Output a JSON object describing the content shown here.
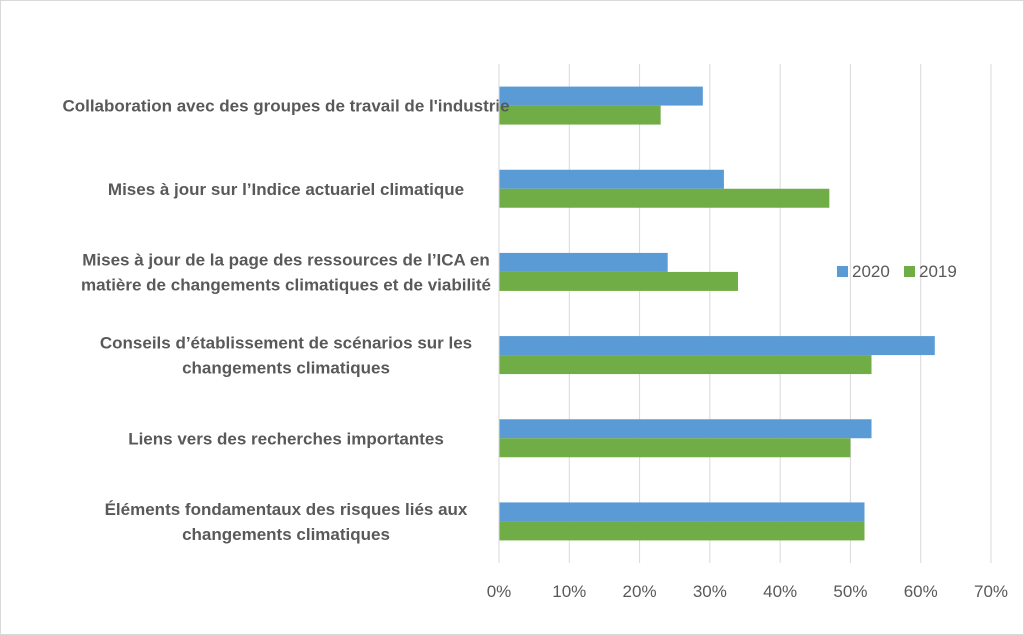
{
  "chart_data": {
    "type": "bar",
    "orientation": "horizontal",
    "categories": [
      [
        "Collaboration avec des groupes de travail de l'industrie"
      ],
      [
        "Mises à jour sur l’Indice actuariel climatique"
      ],
      [
        "Mises à jour de la page des ressources de l’ICA en",
        "matière de changements climatiques et de viabilité"
      ],
      [
        "Conseils d’établissement de scénarios sur les",
        "changements climatiques"
      ],
      [
        "Liens vers des recherches importantes"
      ],
      [
        "Éléments fondamentaux des risques liés aux",
        "changements climatiques"
      ]
    ],
    "series": [
      {
        "name": "2020",
        "color": "#5b9bd5",
        "values": [
          0.29,
          0.32,
          0.24,
          0.62,
          0.53,
          0.52
        ]
      },
      {
        "name": "2019",
        "color": "#70ad47",
        "values": [
          0.23,
          0.47,
          0.34,
          0.53,
          0.5,
          0.52
        ]
      }
    ],
    "xlim": [
      0,
      0.7
    ],
    "xticks": [
      "0%",
      "10%",
      "20%",
      "30%",
      "40%",
      "50%",
      "60%",
      "70%"
    ],
    "grid": true,
    "legend_position": "right"
  }
}
